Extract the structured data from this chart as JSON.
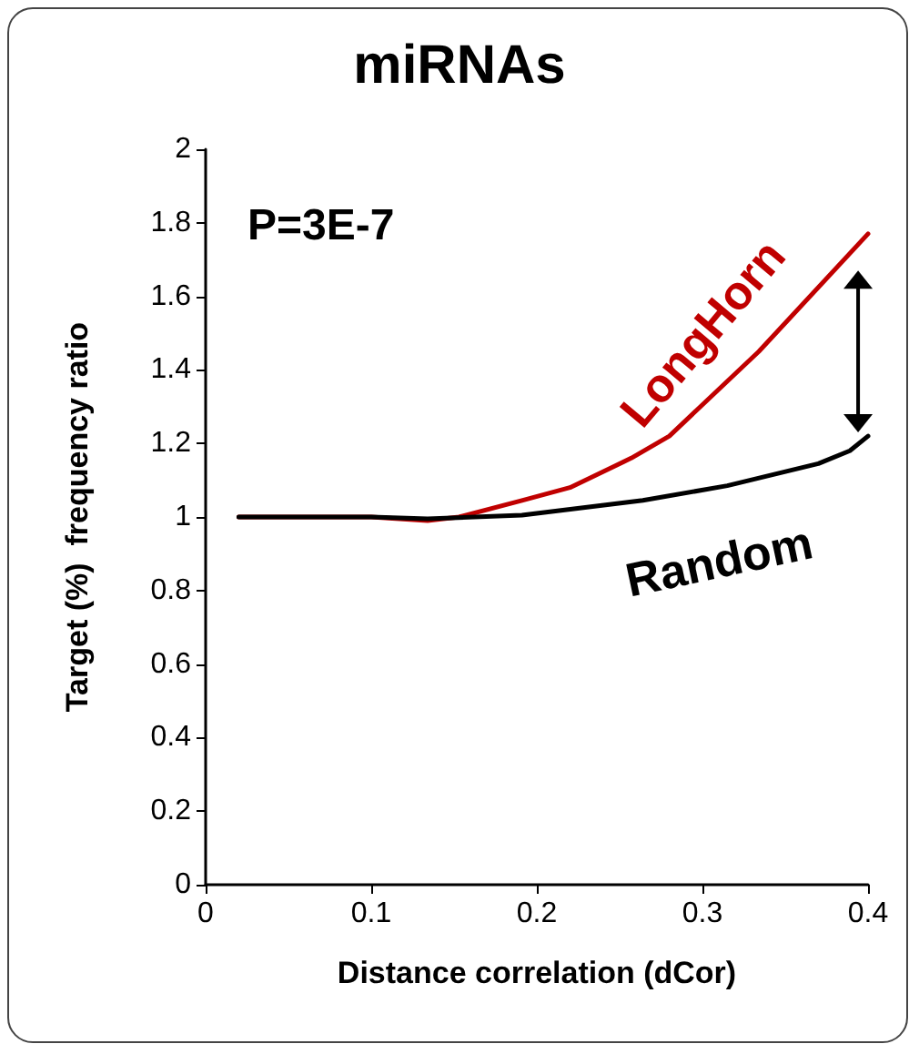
{
  "chart_data": {
    "type": "line",
    "title": "miRNAs",
    "xlabel": "Distance correlation (dCor)",
    "ylabel": "Target (%)  frequency ratio",
    "annotations": [
      "P=3E-7"
    ],
    "series": [
      {
        "name": "LongHorn",
        "color": "#c00000",
        "x": [
          0.02,
          0.1,
          0.134,
          0.153,
          0.191,
          0.22,
          0.257,
          0.28,
          0.334,
          0.4
        ],
        "values": [
          1.0,
          1.0,
          0.99,
          1.0,
          1.045,
          1.08,
          1.16,
          1.22,
          1.45,
          1.77
        ]
      },
      {
        "name": "Random",
        "color": "#000000",
        "x": [
          0.02,
          0.1,
          0.134,
          0.191,
          0.264,
          0.315,
          0.37,
          0.389,
          0.4
        ],
        "values": [
          1.0,
          1.0,
          0.995,
          1.005,
          1.045,
          1.085,
          1.145,
          1.18,
          1.22
        ]
      }
    ],
    "xlim": [
      0,
      0.4
    ],
    "xticks": [
      0,
      0.1,
      0.2,
      0.3,
      0.4
    ],
    "ylim": [
      0,
      2
    ],
    "yticks": [
      0,
      0.2,
      0.4,
      0.6,
      0.8,
      1,
      1.2,
      1.4,
      1.6,
      1.8,
      2
    ],
    "grid": false,
    "legend": false,
    "marker": "none",
    "line_style": "solid"
  }
}
